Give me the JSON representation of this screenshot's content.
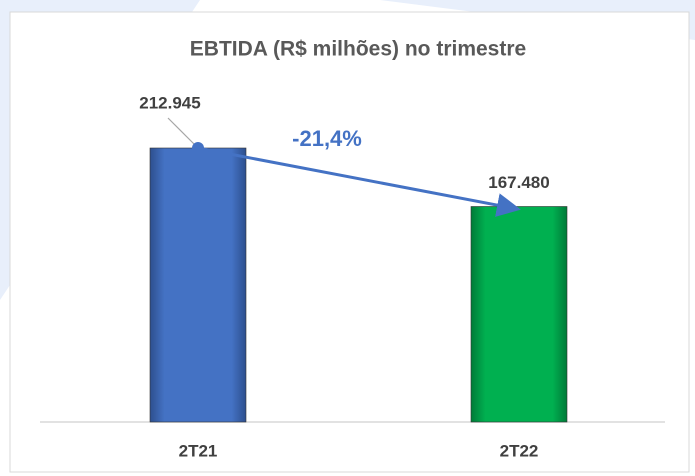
{
  "chart_data": {
    "type": "bar",
    "title": "EBTIDA (R$ milhões) no trimestre",
    "categories": [
      "2T21",
      "2T22"
    ],
    "values": [
      212945,
      167480
    ],
    "value_labels": [
      "212.945",
      "167.480"
    ],
    "colors": [
      "#4472c4",
      "#00b050"
    ],
    "annotation": "-21,4%"
  }
}
